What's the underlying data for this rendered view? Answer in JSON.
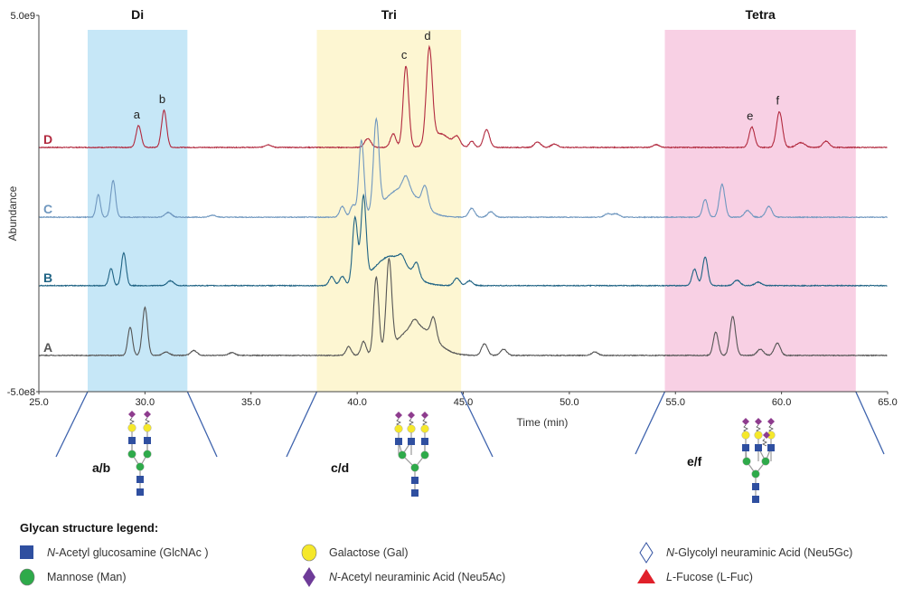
{
  "chart_data": {
    "type": "line",
    "xlabel": "Time (min)",
    "ylabel": "Abundance",
    "xlim": [
      25.0,
      65.0
    ],
    "ylim": [
      -500000000,
      5000000000
    ],
    "x_ticks": [
      "25.0",
      "30.0",
      "35.0",
      "40.0",
      "45.0",
      "50.0",
      "55.0",
      "60.0",
      "65.0"
    ],
    "y_ticks": [
      "5.0e9",
      "-5.0e8"
    ],
    "grid": false,
    "regions": [
      {
        "label": "Di",
        "from": 27.3,
        "to": 32.0,
        "color": "#c6e7f7"
      },
      {
        "label": "Tri",
        "from": 38.1,
        "to": 44.9,
        "color": "#fdf6d2"
      },
      {
        "label": "Tetra",
        "from": 54.5,
        "to": 63.5,
        "color": "#f8d0e4"
      }
    ],
    "series_units": "abundance e9; peaks as [retention time (min), height, width]",
    "series": [
      {
        "name": "D",
        "color": "#b22a3f",
        "offset": 3.07,
        "peaks": [
          [
            29.7,
            0.32,
            0.12
          ],
          [
            30.9,
            0.54,
            0.12
          ],
          [
            35.8,
            0.04,
            0.15
          ],
          [
            40.5,
            0.13,
            0.15
          ],
          [
            41.7,
            0.2,
            0.13
          ],
          [
            42.3,
            1.19,
            0.13
          ],
          [
            43.4,
            1.36,
            0.14
          ],
          [
            43.9,
            0.2,
            0.45
          ],
          [
            44.7,
            0.13,
            0.15
          ],
          [
            45.4,
            0.09,
            0.12
          ],
          [
            46.1,
            0.26,
            0.14
          ],
          [
            48.5,
            0.08,
            0.15
          ],
          [
            49.3,
            0.05,
            0.15
          ],
          [
            54.1,
            0.04,
            0.15
          ],
          [
            58.6,
            0.3,
            0.13
          ],
          [
            59.9,
            0.52,
            0.14
          ],
          [
            60.9,
            0.07,
            0.2
          ],
          [
            62.1,
            0.09,
            0.15
          ]
        ]
      },
      {
        "name": "C",
        "color": "#6f97bf",
        "offset": 2.05,
        "peaks": [
          [
            27.8,
            0.33,
            0.1
          ],
          [
            28.5,
            0.54,
            0.11
          ],
          [
            31.1,
            0.07,
            0.15
          ],
          [
            33.2,
            0.03,
            0.15
          ],
          [
            39.3,
            0.16,
            0.12
          ],
          [
            39.8,
            0.17,
            0.12
          ],
          [
            40.2,
            1.1,
            0.12
          ],
          [
            40.9,
            1.3,
            0.13
          ],
          [
            42.1,
            0.42,
            0.8
          ],
          [
            42.3,
            0.2,
            0.15
          ],
          [
            43.2,
            0.3,
            0.14
          ],
          [
            45.4,
            0.13,
            0.14
          ],
          [
            46.3,
            0.08,
            0.15
          ],
          [
            51.8,
            0.05,
            0.15
          ],
          [
            52.2,
            0.05,
            0.15
          ],
          [
            56.4,
            0.26,
            0.12
          ],
          [
            57.2,
            0.48,
            0.13
          ],
          [
            58.4,
            0.1,
            0.15
          ],
          [
            59.4,
            0.16,
            0.14
          ]
        ]
      },
      {
        "name": "B",
        "color": "#1f6384",
        "offset": 1.05,
        "peaks": [
          [
            28.4,
            0.25,
            0.1
          ],
          [
            29.0,
            0.48,
            0.11
          ],
          [
            31.2,
            0.07,
            0.15
          ],
          [
            38.8,
            0.13,
            0.12
          ],
          [
            39.3,
            0.13,
            0.12
          ],
          [
            39.9,
            0.95,
            0.12
          ],
          [
            40.3,
            1.2,
            0.12
          ],
          [
            41.6,
            0.43,
            0.8
          ],
          [
            42.1,
            0.1,
            0.15
          ],
          [
            42.8,
            0.2,
            0.13
          ],
          [
            44.7,
            0.11,
            0.14
          ],
          [
            45.3,
            0.07,
            0.15
          ],
          [
            55.9,
            0.24,
            0.12
          ],
          [
            56.4,
            0.42,
            0.12
          ],
          [
            57.9,
            0.08,
            0.15
          ],
          [
            58.9,
            0.05,
            0.15
          ]
        ]
      },
      {
        "name": "A",
        "color": "#555555",
        "offset": 0.03,
        "peaks": [
          [
            29.3,
            0.41,
            0.11
          ],
          [
            30.0,
            0.7,
            0.12
          ],
          [
            31.0,
            0.05,
            0.15
          ],
          [
            32.3,
            0.07,
            0.15
          ],
          [
            34.1,
            0.04,
            0.15
          ],
          [
            39.6,
            0.13,
            0.12
          ],
          [
            40.3,
            0.2,
            0.12
          ],
          [
            40.9,
            1.12,
            0.12
          ],
          [
            41.5,
            1.3,
            0.13
          ],
          [
            42.8,
            0.43,
            0.8
          ],
          [
            42.7,
            0.1,
            0.15
          ],
          [
            43.6,
            0.3,
            0.13
          ],
          [
            46.0,
            0.17,
            0.14
          ],
          [
            46.9,
            0.09,
            0.15
          ],
          [
            51.2,
            0.05,
            0.15
          ],
          [
            56.9,
            0.34,
            0.12
          ],
          [
            57.7,
            0.57,
            0.13
          ],
          [
            59.0,
            0.09,
            0.15
          ],
          [
            59.8,
            0.18,
            0.14
          ]
        ]
      }
    ],
    "annotations": [
      {
        "label": "a",
        "x": 29.7,
        "series": "D"
      },
      {
        "label": "b",
        "x": 30.9,
        "series": "D"
      },
      {
        "label": "c",
        "x": 42.3,
        "series": "D"
      },
      {
        "label": "d",
        "x": 43.4,
        "series": "D"
      },
      {
        "label": "e",
        "x": 58.6,
        "series": "D"
      },
      {
        "label": "f",
        "x": 59.9,
        "series": "D"
      }
    ]
  },
  "glycans": [
    {
      "label": "a/b",
      "type": "biantennary"
    },
    {
      "label": "c/d",
      "type": "triantennary"
    },
    {
      "label": "e/f",
      "type": "tetrasialylated"
    }
  ],
  "legend": {
    "title": "Glycan structure legend:",
    "items": [
      {
        "italic": "N",
        "text": "-Acetyl glucosamine (GlcNAc )",
        "shape": "square",
        "color": "#2f4fa0"
      },
      {
        "italic": "",
        "text": "Mannose (Man)",
        "shape": "circle",
        "color": "#2eaa4a"
      },
      {
        "italic": "",
        "text": "Galactose (Gal)",
        "shape": "circle",
        "color": "#f5e82a"
      },
      {
        "italic": "N",
        "text": "-Acetyl neuraminic Acid (Neu5Ac)",
        "shape": "diamond",
        "color": "#6e3b98"
      },
      {
        "italic": "N",
        "text": "-Glycolyl neuraminic Acid (Neu5Gc)",
        "shape": "hollow-diamond",
        "color": "#2f4fa0"
      },
      {
        "italic": "L",
        "text": "-Fucose (L-Fuc)",
        "shape": "triangle",
        "color": "#e0202a"
      }
    ]
  }
}
